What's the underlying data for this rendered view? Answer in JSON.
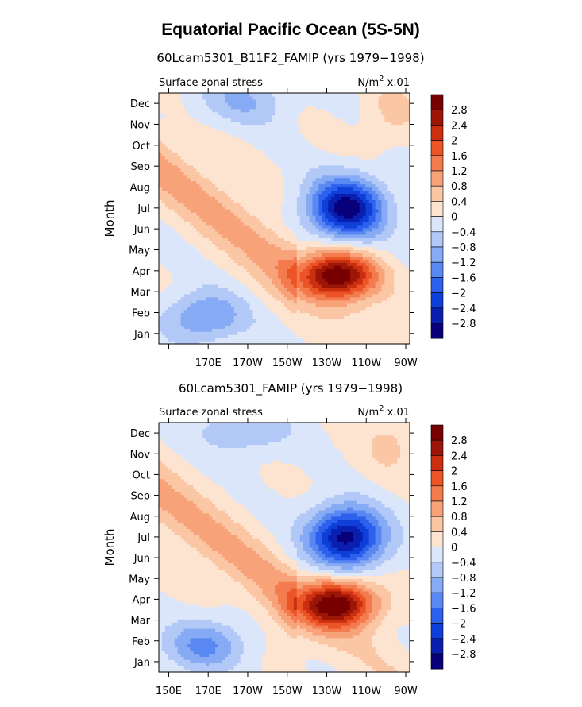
{
  "title": "Equatorial Pacific Ocean (5S-5N)",
  "panels": [
    {
      "subtitle": "60Lcam5301_B11F2_FAMIP (yrs 1979−1998)",
      "left_label": "Surface zonal stress",
      "units_base": "N/m",
      "units_exp": "2",
      "units_scale": "x.01",
      "ylabel": "Month",
      "xticks": [
        "",
        "170E",
        "170W",
        "150W",
        "130W",
        "110W",
        "90W"
      ],
      "seed": 1
    },
    {
      "subtitle": "60Lcam5301_FAMIP (yrs 1979−1998)",
      "left_label": "Surface zonal stress",
      "units_base": "N/m",
      "units_exp": "2",
      "units_scale": "x.01",
      "ylabel": "Month",
      "xticks": [
        "150E",
        "170E",
        "170W",
        "150W",
        "130W",
        "110W",
        "90W"
      ],
      "seed": 2
    }
  ],
  "chart_data": {
    "type": "heatmap",
    "variable": "Surface zonal stress",
    "units": "N/m^2 x.01",
    "x_longitudes": [
      150,
      170,
      190,
      210,
      230,
      250,
      270
    ],
    "y_months": [
      "Jan",
      "Feb",
      "Mar",
      "Apr",
      "May",
      "Jun",
      "Jul",
      "Aug",
      "Sep",
      "Oct",
      "Nov",
      "Dec"
    ],
    "colorbar_levels": [
      -2.8,
      -2.4,
      -2,
      -1.6,
      -1.2,
      -0.8,
      -0.4,
      0,
      0.4,
      0.8,
      1.2,
      1.6,
      2,
      2.4,
      2.8
    ],
    "colorbar_labels": [
      "2.8",
      "2.4",
      "2",
      "1.6",
      "1.2",
      "0.8",
      "0.4",
      "0",
      "−0.4",
      "−0.8",
      "−1.2",
      "−1.6",
      "−2",
      "−2.4",
      "−2.8"
    ],
    "colors": [
      "#08007a",
      "#0a1fb0",
      "#0e3fd8",
      "#2e60ee",
      "#5a88f2",
      "#86aaf4",
      "#b2c8f6",
      "#dbe6fb",
      "#fde4d0",
      "#fbc6a4",
      "#f8a27a",
      "#f37b4e",
      "#ea5426",
      "#cc2e10",
      "#9c1607",
      "#780000"
    ],
    "xlim": [
      145,
      272
    ],
    "ylim": [
      0.5,
      12.5
    ],
    "features": {
      "positive_max_month": 3.8,
      "positive_max_lon": 235,
      "negative_max_month": 7.0,
      "negative_max_lon": 240
    }
  }
}
